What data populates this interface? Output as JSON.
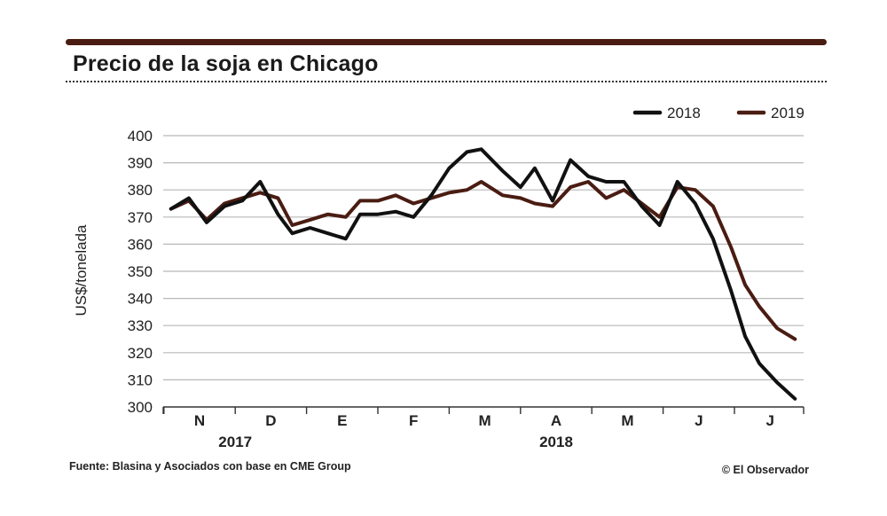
{
  "title": "Precio de la soja en Chicago",
  "source": "Fuente: Blasina y Asociados con base en CME Group",
  "credit": "© El Observador",
  "colors": {
    "s2018": "#111111",
    "s2019": "#4a1c12",
    "grid": "#b8b8b8",
    "bar": "#4a1c12"
  },
  "chart_data": {
    "type": "line",
    "title": "Precio de la soja en Chicago",
    "ylabel": "US$/tonelada",
    "xlabel": "",
    "ylim": [
      300,
      400
    ],
    "yticks": [
      300,
      310,
      320,
      330,
      340,
      350,
      360,
      370,
      380,
      390,
      400
    ],
    "grid": true,
    "legend_position": "top-right",
    "categories": [
      "N",
      "D",
      "E",
      "F",
      "M",
      "A",
      "M",
      "J",
      "J"
    ],
    "year_labels": [
      {
        "label": "2017",
        "at_category": 0.5
      },
      {
        "label": "2018",
        "at_category": 5.0
      }
    ],
    "x_domain": [
      -0.5,
      8.4
    ],
    "series": [
      {
        "name": "2018",
        "color": "#111111",
        "x": [
          -0.4,
          -0.15,
          0.1,
          0.35,
          0.6,
          0.85,
          1.1,
          1.3,
          1.55,
          1.8,
          2.05,
          2.25,
          2.5,
          2.75,
          3.0,
          3.25,
          3.5,
          3.75,
          3.95,
          4.25,
          4.5,
          4.7,
          4.95,
          5.2,
          5.45,
          5.7,
          5.95,
          6.2,
          6.45,
          6.7,
          6.95,
          7.2,
          7.45,
          7.65,
          7.85,
          8.1,
          8.35
        ],
        "values": [
          373,
          377,
          368,
          374,
          376,
          383,
          371,
          364,
          366,
          364,
          362,
          371,
          371,
          372,
          370,
          378,
          388,
          394,
          395,
          387,
          381,
          388,
          376,
          391,
          385,
          383,
          383,
          374,
          367,
          383,
          375,
          362,
          343,
          326,
          316,
          309,
          303
        ]
      },
      {
        "name": "2019",
        "color": "#4a1c12",
        "x": [
          -0.4,
          -0.15,
          0.1,
          0.35,
          0.6,
          0.85,
          1.1,
          1.3,
          1.55,
          1.8,
          2.05,
          2.25,
          2.5,
          2.75,
          3.0,
          3.25,
          3.5,
          3.75,
          3.95,
          4.25,
          4.5,
          4.7,
          4.95,
          5.2,
          5.45,
          5.7,
          5.95,
          6.2,
          6.45,
          6.7,
          6.95,
          7.2,
          7.45,
          7.65,
          7.85,
          8.1,
          8.35
        ],
        "values": [
          373,
          376,
          369,
          375,
          377,
          379,
          377,
          367,
          369,
          371,
          370,
          376,
          376,
          378,
          375,
          377,
          379,
          380,
          383,
          378,
          377,
          375,
          374,
          381,
          383,
          377,
          380,
          375,
          370,
          381,
          380,
          374,
          359,
          345,
          337,
          329,
          325
        ]
      }
    ]
  }
}
